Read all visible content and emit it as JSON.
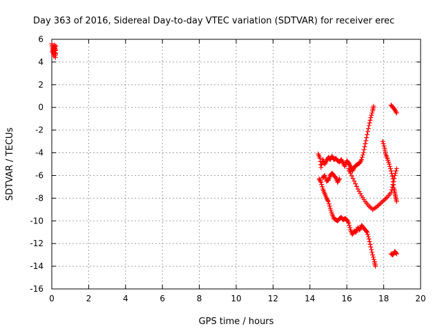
{
  "chart_data": {
    "type": "scatter",
    "title": "Day 363 of 2016, Sidereal Day-to-day VTEC variation (SDTVAR) for receiver erec",
    "xlabel": "GPS time / hours",
    "ylabel": "SDTVAR / TECUs",
    "xlim": [
      0,
      20
    ],
    "ylim": [
      -16,
      6
    ],
    "xticks": [
      "0",
      "2",
      "4",
      "6",
      "8",
      "10",
      "12",
      "14",
      "16",
      "18",
      "20"
    ],
    "yticks": [
      "6",
      "4",
      "2",
      "0",
      "-2",
      "-4",
      "-6",
      "-8",
      "-10",
      "-12",
      "-14",
      "-16"
    ],
    "grid": true,
    "marker": "+",
    "series": [
      {
        "name": "SDTVAR",
        "color": "#ff0000",
        "segments": [
          [
            [
              0.0,
              5.6
            ],
            [
              0.05,
              5.2
            ],
            [
              0.08,
              4.8
            ],
            [
              0.12,
              4.5
            ],
            [
              0.15,
              5.5
            ],
            [
              0.18,
              5.0
            ],
            [
              0.2,
              4.4
            ],
            [
              0.22,
              5.4
            ],
            [
              0.03,
              4.9
            ],
            [
              0.1,
              5.3
            ]
          ],
          [
            [
              14.45,
              -4.1
            ],
            [
              14.55,
              -4.5
            ],
            [
              14.6,
              -5.3
            ],
            [
              14.7,
              -4.6
            ],
            [
              14.8,
              -5.0
            ],
            [
              14.9,
              -4.7
            ],
            [
              15.0,
              -4.4
            ],
            [
              15.1,
              -4.6
            ],
            [
              15.2,
              -4.3
            ],
            [
              15.3,
              -4.6
            ],
            [
              15.4,
              -4.5
            ],
            [
              15.5,
              -4.7
            ],
            [
              15.6,
              -4.8
            ],
            [
              15.7,
              -4.6
            ],
            [
              15.8,
              -4.9
            ],
            [
              15.9,
              -5.2
            ],
            [
              16.0,
              -4.7
            ],
            [
              16.1,
              -4.9
            ],
            [
              16.2,
              -5.2
            ],
            [
              16.3,
              -5.6
            ],
            [
              16.4,
              -5.3
            ],
            [
              16.5,
              -5.1
            ],
            [
              16.6,
              -5.0
            ],
            [
              16.7,
              -4.9
            ],
            [
              16.8,
              -4.6
            ],
            [
              16.9,
              -4.0
            ],
            [
              17.0,
              -3.2
            ],
            [
              17.1,
              -2.4
            ],
            [
              17.2,
              -1.6
            ],
            [
              17.3,
              -0.9
            ],
            [
              17.4,
              -0.3
            ],
            [
              17.45,
              0.1
            ]
          ],
          [
            [
              14.5,
              -6.3
            ],
            [
              14.6,
              -6.6
            ],
            [
              14.7,
              -7.2
            ],
            [
              14.8,
              -7.6
            ],
            [
              14.9,
              -8.0
            ],
            [
              15.0,
              -8.3
            ],
            [
              15.1,
              -8.9
            ],
            [
              15.2,
              -9.4
            ],
            [
              15.3,
              -9.8
            ],
            [
              15.4,
              -9.9
            ],
            [
              15.5,
              -10.0
            ],
            [
              15.6,
              -9.8
            ],
            [
              15.7,
              -9.7
            ],
            [
              15.8,
              -9.9
            ],
            [
              15.9,
              -9.8
            ],
            [
              16.0,
              -9.9
            ],
            [
              16.1,
              -10.2
            ],
            [
              16.2,
              -10.8
            ],
            [
              16.3,
              -11.2
            ],
            [
              16.4,
              -10.9
            ],
            [
              16.5,
              -11.0
            ],
            [
              16.6,
              -10.6
            ],
            [
              16.7,
              -10.8
            ],
            [
              16.8,
              -10.4
            ],
            [
              16.9,
              -10.6
            ],
            [
              17.0,
              -10.8
            ],
            [
              17.1,
              -11.0
            ],
            [
              17.2,
              -11.6
            ],
            [
              17.3,
              -12.3
            ],
            [
              17.4,
              -13.0
            ],
            [
              17.5,
              -13.6
            ],
            [
              17.55,
              -14.0
            ]
          ],
          [
            [
              14.7,
              -6.2
            ],
            [
              14.8,
              -6.0
            ],
            [
              14.9,
              -6.5
            ],
            [
              15.0,
              -6.4
            ],
            [
              15.1,
              -6.0
            ],
            [
              15.2,
              -5.8
            ],
            [
              15.3,
              -6.0
            ],
            [
              15.4,
              -6.2
            ],
            [
              15.5,
              -6.6
            ],
            [
              15.6,
              -6.3
            ]
          ],
          [
            [
              16.1,
              -5.4
            ],
            [
              16.2,
              -5.8
            ],
            [
              16.4,
              -6.5
            ],
            [
              16.6,
              -7.2
            ],
            [
              16.8,
              -7.8
            ],
            [
              17.0,
              -8.3
            ],
            [
              17.2,
              -8.7
            ],
            [
              17.4,
              -9.0
            ],
            [
              17.6,
              -8.8
            ],
            [
              17.8,
              -8.5
            ],
            [
              18.0,
              -8.2
            ],
            [
              18.2,
              -7.9
            ],
            [
              18.4,
              -7.5
            ],
            [
              18.5,
              -6.8
            ],
            [
              18.6,
              -6.0
            ],
            [
              18.7,
              -5.4
            ]
          ],
          [
            [
              17.95,
              -3.0
            ],
            [
              18.05,
              -3.6
            ],
            [
              18.1,
              -4.1
            ],
            [
              18.2,
              -4.5
            ],
            [
              18.3,
              -5.0
            ],
            [
              18.4,
              -5.6
            ],
            [
              18.5,
              -6.3
            ],
            [
              18.55,
              -7.1
            ],
            [
              18.6,
              -7.5
            ],
            [
              18.65,
              -7.9
            ],
            [
              18.7,
              -8.3
            ]
          ],
          [
            [
              18.4,
              0.2
            ],
            [
              18.5,
              0.0
            ],
            [
              18.6,
              -0.2
            ],
            [
              18.7,
              -0.5
            ]
          ],
          [
            [
              18.4,
              -12.9
            ],
            [
              18.5,
              -13.0
            ],
            [
              18.6,
              -12.7
            ],
            [
              18.7,
              -12.9
            ]
          ]
        ]
      }
    ]
  }
}
